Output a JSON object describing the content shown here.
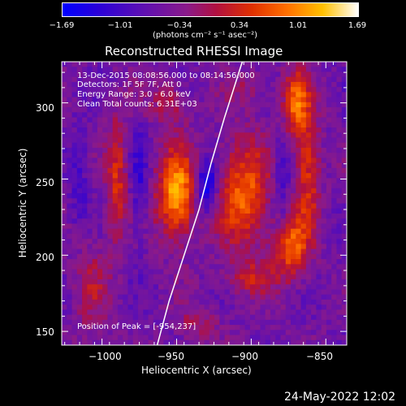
{
  "colorbar": {
    "ticks": [
      "−1.69",
      "−1.01",
      "−0.34",
      "0.34",
      "1.01",
      "1.69"
    ],
    "range": [
      -1.69,
      1.69
    ],
    "unit": "(photons cm⁻² s⁻¹ asec⁻²)"
  },
  "annotations": {
    "line1": "13-Dec-2015 08:08:56.000 to 08:14:56.000",
    "line2": "Detectors: 1F 5F 7F, Att 0",
    "line3": "Energy Range: 3.0 - 6.0 keV",
    "line4": "Clean     Total counts: 6.31E+03",
    "peak": "Position of Peak = [-954,237]"
  },
  "chart_data": {
    "type": "heatmap",
    "title": "Reconstructed RHESSI Image",
    "xlabel": "Heliocentric X (arcsec)",
    "ylabel": "Heliocentric Y (arcsec)",
    "xlim": [
      -1027,
      -836
    ],
    "ylim": [
      141,
      327
    ],
    "xticks": [
      -1000,
      -950,
      -900,
      -850
    ],
    "yticks": [
      150,
      200,
      250,
      300
    ],
    "xtick_labels": [
      "−1000",
      "−950",
      "−900",
      "−850"
    ],
    "ytick_labels": [
      "150",
      "200",
      "250",
      "300"
    ],
    "colormap": "blue-purple-red-yellow-white",
    "peak_position": [
      -954,
      237
    ],
    "blobs": [
      {
        "x": -950,
        "y": 240,
        "rx": 9,
        "ry": 20,
        "amp": 1.7
      },
      {
        "x": -905,
        "y": 240,
        "rx": 12,
        "ry": 25,
        "amp": 1.3
      },
      {
        "x": -990,
        "y": 250,
        "rx": 5,
        "ry": 30,
        "amp": 0.9
      },
      {
        "x": -1007,
        "y": 180,
        "rx": 8,
        "ry": 25,
        "amp": 0.5
      },
      {
        "x": -870,
        "y": 300,
        "rx": 6,
        "ry": 15,
        "amp": 1.3
      },
      {
        "x": -862,
        "y": 255,
        "rx": 6,
        "ry": 28,
        "amp": 1.0
      },
      {
        "x": -873,
        "y": 205,
        "rx": 8,
        "ry": 15,
        "amp": 1.2
      },
      {
        "x": -955,
        "y": 300,
        "rx": 10,
        "ry": 10,
        "amp": 0.6
      },
      {
        "x": -900,
        "y": 310,
        "rx": 10,
        "ry": 8,
        "amp": 0.4
      },
      {
        "x": -900,
        "y": 185,
        "rx": 12,
        "ry": 8,
        "amp": 0.6
      },
      {
        "x": -935,
        "y": 155,
        "rx": 10,
        "ry": 8,
        "amp": 0.5
      },
      {
        "x": -930,
        "y": 245,
        "rx": 5,
        "ry": 12,
        "amp": -1.2
      },
      {
        "x": -975,
        "y": 245,
        "rx": 4,
        "ry": 25,
        "amp": -0.5
      },
      {
        "x": -880,
        "y": 250,
        "rx": 4,
        "ry": 20,
        "amp": -0.6
      },
      {
        "x": -1015,
        "y": 250,
        "rx": 5,
        "ry": 25,
        "amp": -0.4
      }
    ],
    "limb_curve": [
      [
        -963,
        141
      ],
      [
        -955,
        170
      ],
      [
        -945,
        200
      ],
      [
        -935,
        230
      ],
      [
        -927,
        260
      ],
      [
        -918,
        290
      ],
      [
        -906,
        327
      ]
    ]
  },
  "timestamp": "24-May-2022 12:02"
}
